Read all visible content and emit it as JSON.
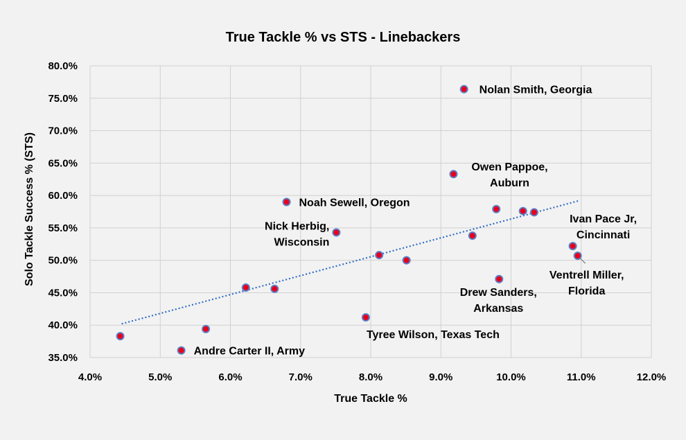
{
  "chart_data": {
    "type": "scatter",
    "title": "True Tackle % vs STS - Linebackers",
    "xlabel": "True Tackle %",
    "ylabel": "Solo Tackle Success % (STS)",
    "xlim": [
      0.04,
      0.12
    ],
    "ylim": [
      0.35,
      0.8
    ],
    "x_ticks": [
      0.04,
      0.05,
      0.06,
      0.07,
      0.08,
      0.09,
      0.1,
      0.11,
      0.12
    ],
    "x_tick_labels": [
      "4.0%",
      "5.0%",
      "6.0%",
      "7.0%",
      "8.0%",
      "9.0%",
      "10.0%",
      "11.0%",
      "12.0%"
    ],
    "y_ticks": [
      0.35,
      0.4,
      0.45,
      0.5,
      0.55,
      0.6,
      0.65,
      0.7,
      0.75,
      0.8
    ],
    "y_tick_labels": [
      "35.0%",
      "40.0%",
      "45.0%",
      "50.0%",
      "55.0%",
      "60.0%",
      "65.0%",
      "70.0%",
      "75.0%",
      "80.0%"
    ],
    "grid": true,
    "marker_fill": "#e8001c",
    "marker_edge": "#5b7fc4",
    "trendline_color": "#2e6cc4",
    "trendline": {
      "type": "linear",
      "x": [
        0.0445,
        0.1097
      ],
      "y": [
        0.402,
        0.592
      ]
    },
    "points": [
      {
        "x": 0.0443,
        "y": 0.383,
        "label": ""
      },
      {
        "x": 0.053,
        "y": 0.361,
        "label": "Andre Carter II, Army"
      },
      {
        "x": 0.0565,
        "y": 0.394,
        "label": ""
      },
      {
        "x": 0.0622,
        "y": 0.458,
        "label": ""
      },
      {
        "x": 0.0663,
        "y": 0.456,
        "label": ""
      },
      {
        "x": 0.068,
        "y": 0.59,
        "label": "Noah Sewell, Oregon"
      },
      {
        "x": 0.0751,
        "y": 0.543,
        "label": "Nick Herbig, Wisconsin"
      },
      {
        "x": 0.0793,
        "y": 0.412,
        "label": "Tyree Wilson, Texas Tech"
      },
      {
        "x": 0.0812,
        "y": 0.508,
        "label": ""
      },
      {
        "x": 0.0851,
        "y": 0.5,
        "label": ""
      },
      {
        "x": 0.0918,
        "y": 0.633,
        "label": "Owen Pappoe, Auburn"
      },
      {
        "x": 0.0933,
        "y": 0.764,
        "label": "Nolan Smith, Georgia"
      },
      {
        "x": 0.0945,
        "y": 0.538,
        "label": ""
      },
      {
        "x": 0.0979,
        "y": 0.579,
        "label": ""
      },
      {
        "x": 0.0983,
        "y": 0.471,
        "label": "Drew Sanders, Arkansas"
      },
      {
        "x": 0.1017,
        "y": 0.576,
        "label": ""
      },
      {
        "x": 0.1033,
        "y": 0.574,
        "label": ""
      },
      {
        "x": 0.1088,
        "y": 0.522,
        "label": "Ivan Pace Jr, Cincinnati"
      },
      {
        "x": 0.1095,
        "y": 0.507,
        "label": "Ventrell Miller, Florida"
      }
    ]
  }
}
